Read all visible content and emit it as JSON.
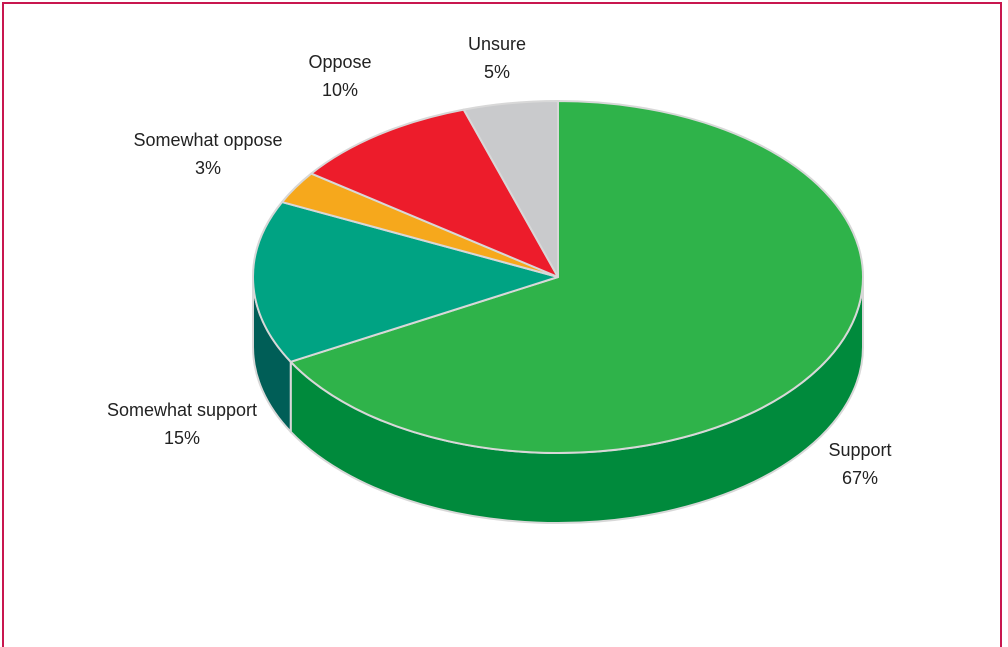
{
  "chart_data": {
    "type": "pie",
    "style": "3d",
    "title": "",
    "slices": [
      {
        "name": "Support",
        "value": 67,
        "label": "Support",
        "pct": "67%",
        "color": "#2fb34a",
        "side": "#008a3c"
      },
      {
        "name": "Somewhat support",
        "value": 15,
        "label": "Somewhat support",
        "pct": "15%",
        "color": "#00a383",
        "side": "#005e57"
      },
      {
        "name": "Somewhat oppose",
        "value": 3,
        "label": "Somewhat oppose",
        "pct": "3%",
        "color": "#f6a81c",
        "side": "#c98410"
      },
      {
        "name": "Oppose",
        "value": 10,
        "label": "Oppose",
        "pct": "10%",
        "color": "#ed1c2b",
        "side": "#b0121d"
      },
      {
        "name": "Unsure",
        "value": 5,
        "label": "Unsure",
        "pct": "5%",
        "color": "#c9cacc",
        "side": "#9a9b9d"
      }
    ]
  },
  "colors": {
    "frame": "#c8174f",
    "edge": "#d8d8d8"
  }
}
